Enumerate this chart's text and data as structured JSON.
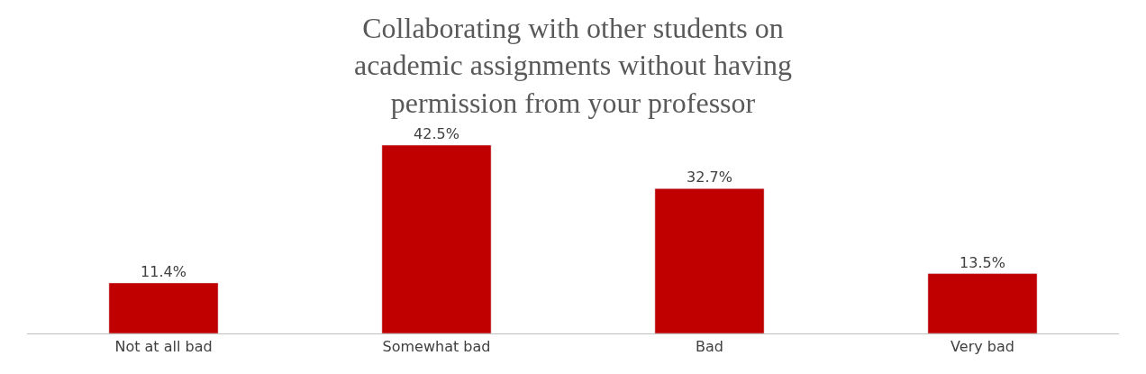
{
  "chart_data": {
    "type": "bar",
    "title": "Collaborating with other students on\nacademic assignments without having\npermission from your professor",
    "categories": [
      "Not at all bad",
      "Somewhat bad",
      "Bad",
      "Very bad"
    ],
    "values": [
      11.4,
      42.5,
      32.7,
      13.5
    ],
    "value_labels": [
      "11.4%",
      "42.5%",
      "32.7%",
      "13.5%"
    ],
    "color": "#c00000"
  }
}
